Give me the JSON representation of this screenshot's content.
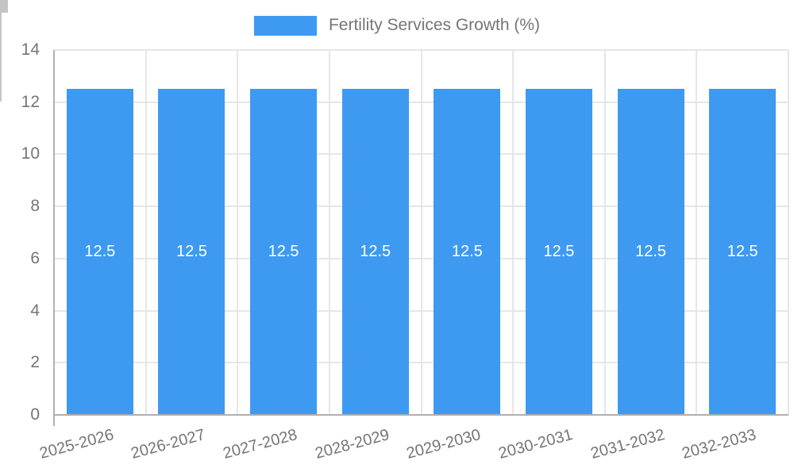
{
  "legend": {
    "label": "Fertility Services Growth (%)",
    "position": "top"
  },
  "colors": {
    "bar": "#3D9AF0",
    "bar_label_text": "#FFFFFF",
    "axis_text": "#757575",
    "grid_line": "#E6E6E6",
    "axis_line": "#B0B0B0",
    "background": "#FFFFFF"
  },
  "chart_data": {
    "type": "bar",
    "title": "Fertility Services Growth (%)",
    "categories": [
      "2025-2026",
      "2026-2027",
      "2027-2028",
      "2028-2029",
      "2029-2030",
      "2030-2031",
      "2031-2032",
      "2032-2033"
    ],
    "series": [
      {
        "name": "Fertility Services Growth (%)",
        "values": [
          12.5,
          12.5,
          12.5,
          12.5,
          12.5,
          12.5,
          12.5,
          12.5
        ]
      }
    ],
    "value_labels": [
      "12.5",
      "12.5",
      "12.5",
      "12.5",
      "12.5",
      "12.5",
      "12.5",
      "12.5"
    ],
    "xlabel": "",
    "ylabel": "",
    "ylim": [
      0,
      14
    ],
    "yticks": [
      0,
      2,
      4,
      6,
      8,
      10,
      12,
      14
    ],
    "grid": true,
    "legend_position": "top",
    "x_tick_rotation_deg": -15
  }
}
